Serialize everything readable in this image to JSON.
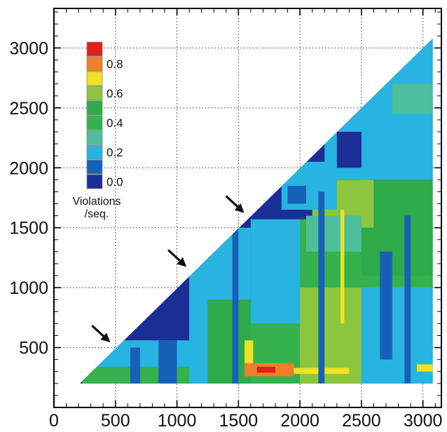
{
  "chart_data": {
    "type": "heatmap",
    "shape": "upper-triangle",
    "x_ticks": [
      "0",
      "500",
      "1000",
      "1500",
      "2000",
      "2500",
      "3000"
    ],
    "y_ticks": [
      "500",
      "1000",
      "1500",
      "2000",
      "2500",
      "3000"
    ],
    "xlim": [
      0,
      3150
    ],
    "ylim": [
      0,
      3330
    ],
    "data_extent": {
      "x": [
        210,
        3080
      ],
      "y": [
        200,
        3080
      ]
    },
    "grid": true,
    "grid_style": "dotted",
    "colorbar": {
      "title_lines": [
        "Violations",
        "/seq."
      ],
      "labels": [
        "0.8",
        "0.6",
        "0.4",
        "0.2",
        "0.0"
      ],
      "levels": [
        {
          "value": 0.9,
          "color": "#e0201c"
        },
        {
          "value": 0.8,
          "color": "#f07f2a"
        },
        {
          "value": 0.7,
          "color": "#f0e224"
        },
        {
          "value": 0.6,
          "color": "#8cc63f"
        },
        {
          "value": 0.5,
          "color": "#2eaa4a"
        },
        {
          "value": 0.4,
          "color": "#35b24e"
        },
        {
          "value": 0.3,
          "color": "#4dbf9a"
        },
        {
          "value": 0.2,
          "color": "#28b4e0"
        },
        {
          "value": 0.1,
          "color": "#1760b8"
        },
        {
          "value": 0.0,
          "color": "#1a2f96"
        }
      ]
    },
    "regions": [
      {
        "x": [
          210,
          3080
        ],
        "y": [
          200,
          3080
        ],
        "value": 0.0
      },
      {
        "x": [
          230,
          1950
        ],
        "y": [
          200,
          560
        ],
        "value": 0.2
      },
      {
        "x": [
          230,
          1100
        ],
        "y": [
          200,
          340
        ],
        "value": 0.4
      },
      {
        "x": [
          1100,
          1600
        ],
        "y": [
          200,
          1500
        ],
        "value": 0.2
      },
      {
        "x": [
          1250,
          1600
        ],
        "y": [
          200,
          900
        ],
        "value": 0.5
      },
      {
        "x": [
          1600,
          3080
        ],
        "y": [
          200,
          1570
        ],
        "value": 0.4
      },
      {
        "x": [
          1600,
          2000
        ],
        "y": [
          700,
          1570
        ],
        "value": 0.2
      },
      {
        "x": [
          2000,
          2500
        ],
        "y": [
          200,
          1000
        ],
        "value": 0.6
      },
      {
        "x": [
          2500,
          3080
        ],
        "y": [
          1100,
          1900
        ],
        "value": 0.5
      },
      {
        "x": [
          2500,
          3080
        ],
        "y": [
          200,
          1000
        ],
        "value": 0.2
      },
      {
        "x": [
          2100,
          2600
        ],
        "y": [
          1500,
          1900
        ],
        "value": 0.6
      },
      {
        "x": [
          2050,
          2500
        ],
        "y": [
          1300,
          1600
        ],
        "value": 0.3
      },
      {
        "x": [
          2200,
          3080
        ],
        "y": [
          1900,
          2600
        ],
        "value": 0.2
      },
      {
        "x": [
          2600,
          3080
        ],
        "y": [
          2300,
          3080
        ],
        "value": 0.2
      },
      {
        "x": [
          2300,
          2500
        ],
        "y": [
          2000,
          2300
        ],
        "value": 0.0
      },
      {
        "x": [
          2750,
          3080
        ],
        "y": [
          2450,
          2700
        ],
        "value": 0.3
      },
      {
        "x": [
          1850,
          2300
        ],
        "y": [
          1650,
          2050
        ],
        "value": 0.2
      },
      {
        "x": [
          1900,
          2050
        ],
        "y": [
          1700,
          1850
        ],
        "value": 0.1
      },
      {
        "x": [
          1550,
          1950
        ],
        "y": [
          260,
          370
        ],
        "value": 0.8
      },
      {
        "x": [
          1650,
          1800
        ],
        "y": [
          290,
          340
        ],
        "value": 0.9
      },
      {
        "x": [
          1550,
          1620
        ],
        "y": [
          370,
          560
        ],
        "value": 0.7
      },
      {
        "x": [
          1950,
          2400
        ],
        "y": [
          280,
          330
        ],
        "value": 0.7
      },
      {
        "x": [
          2330,
          2360
        ],
        "y": [
          700,
          1650
        ],
        "value": 0.7
      },
      {
        "x": [
          2950,
          3080
        ],
        "y": [
          300,
          360
        ],
        "value": 0.7
      },
      {
        "x": [
          850,
          1000
        ],
        "y": [
          200,
          560
        ],
        "value": 0.1
      },
      {
        "x": [
          620,
          700
        ],
        "y": [
          200,
          500
        ],
        "value": 0.1
      },
      {
        "x": [
          2650,
          2750
        ],
        "y": [
          400,
          1300
        ],
        "value": 0.1
      },
      {
        "x": [
          2850,
          2900
        ],
        "y": [
          200,
          1600
        ],
        "value": 0.1
      },
      {
        "x": [
          1450,
          1500
        ],
        "y": [
          200,
          1500
        ],
        "value": 0.1
      },
      {
        "x": [
          2150,
          2200
        ],
        "y": [
          200,
          1800
        ],
        "value": 0.1
      }
    ],
    "annotations": [
      {
        "type": "arrow",
        "target": [
          480,
          520
        ]
      },
      {
        "type": "arrow",
        "target": [
          1100,
          1150
        ]
      },
      {
        "type": "arrow",
        "target": [
          1570,
          1600
        ]
      }
    ]
  }
}
